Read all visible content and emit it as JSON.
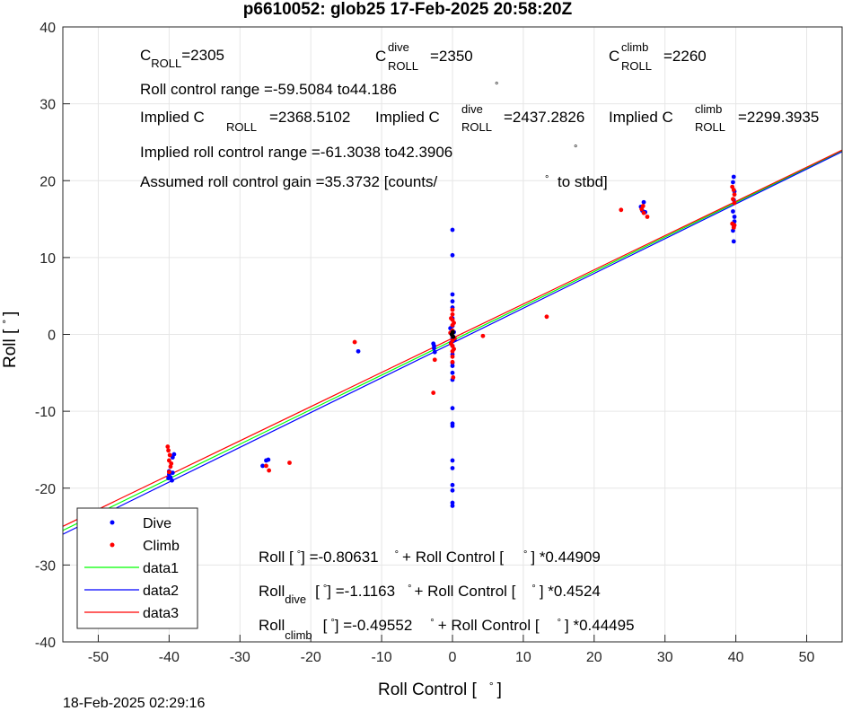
{
  "chart_data": {
    "type": "scatter",
    "title": "p6610052: glob25 17-Feb-2025 20:58:20Z",
    "xlabel": "Roll Control [",
    "ylabel": "Roll [",
    "xlim": [
      -55,
      55
    ],
    "ylim": [
      -40,
      40
    ],
    "grid": true,
    "xticks": [
      "-50",
      "-40",
      "-30",
      "-20",
      "-10",
      "0",
      "10",
      "20",
      "30",
      "40",
      "50"
    ],
    "yticks": [
      "-40",
      "-30",
      "-20",
      "-10",
      "0",
      "10",
      "20",
      "30",
      "40"
    ],
    "legend_position": "bottom-left",
    "legend": [
      "Dive",
      "Climb",
      "data1",
      "data2",
      "data3"
    ],
    "series": [
      {
        "name": "Dive",
        "color": "#0000ff",
        "marker": "dot",
        "points": [
          [
            -40.0,
            -18.2
          ],
          [
            -40.0,
            -17.8
          ],
          [
            -39.8,
            -18.6
          ],
          [
            -39.6,
            -19.0
          ],
          [
            -39.5,
            -16.0
          ],
          [
            -39.3,
            -15.6
          ],
          [
            -39.5,
            -18.0
          ],
          [
            -40.1,
            -18.7
          ],
          [
            -26.3,
            -16.4
          ],
          [
            -26.0,
            -16.3
          ],
          [
            -26.8,
            -17.1
          ],
          [
            -13.3,
            -2.2
          ],
          [
            -2.7,
            -1.2
          ],
          [
            -2.6,
            -1.8
          ],
          [
            -2.5,
            -2.3
          ],
          [
            -2.6,
            -1.5
          ],
          [
            0.0,
            13.6
          ],
          [
            0.0,
            10.3
          ],
          [
            0.0,
            5.2
          ],
          [
            0.0,
            4.3
          ],
          [
            0.0,
            3.5
          ],
          [
            0.0,
            2.1
          ],
          [
            0.0,
            1.1
          ],
          [
            0.0,
            -0.4
          ],
          [
            0.0,
            -1.5
          ],
          [
            0.0,
            -2.6
          ],
          [
            0.0,
            -3.7
          ],
          [
            0.0,
            -4.1
          ],
          [
            0.0,
            -5.0
          ],
          [
            0.0,
            -5.9
          ],
          [
            0.0,
            -9.6
          ],
          [
            0.0,
            -11.6
          ],
          [
            0.0,
            -11.9
          ],
          [
            0.0,
            -16.4
          ],
          [
            0.0,
            -17.4
          ],
          [
            0.0,
            -19.6
          ],
          [
            0.0,
            -20.3
          ],
          [
            0.0,
            -21.9
          ],
          [
            0.0,
            -22.3
          ],
          [
            -0.3,
            0.8
          ],
          [
            -0.2,
            -1.1
          ],
          [
            0.2,
            0.3
          ],
          [
            0.3,
            -0.7
          ],
          [
            27.0,
            17.2
          ],
          [
            26.8,
            16.1
          ],
          [
            27.2,
            15.9
          ],
          [
            26.6,
            16.6
          ],
          [
            39.7,
            20.5
          ],
          [
            39.6,
            19.8
          ],
          [
            39.8,
            18.6
          ],
          [
            39.7,
            17.5
          ],
          [
            39.6,
            16.0
          ],
          [
            39.8,
            15.3
          ],
          [
            39.7,
            14.2
          ],
          [
            39.6,
            13.5
          ],
          [
            39.7,
            12.1
          ],
          [
            39.8,
            14.7
          ]
        ]
      },
      {
        "name": "Climb",
        "color": "#ff0000",
        "marker": "dot",
        "points": [
          [
            -40.2,
            -14.6
          ],
          [
            -40.1,
            -15.1
          ],
          [
            -39.9,
            -15.7
          ],
          [
            -40.0,
            -16.4
          ],
          [
            -39.8,
            -17.2
          ],
          [
            -39.7,
            -16.8
          ],
          [
            -40.0,
            -17.9
          ],
          [
            -26.3,
            -17.1
          ],
          [
            -25.9,
            -17.7
          ],
          [
            -23.0,
            -16.7
          ],
          [
            -13.8,
            -1.0
          ],
          [
            -2.7,
            -7.6
          ],
          [
            -2.5,
            -3.3
          ],
          [
            0.0,
            3.2
          ],
          [
            0.0,
            2.6
          ],
          [
            0.0,
            1.9
          ],
          [
            0.0,
            1.2
          ],
          [
            0.0,
            0.5
          ],
          [
            0.0,
            -0.2
          ],
          [
            0.0,
            -0.8
          ],
          [
            0.0,
            -1.5
          ],
          [
            0.0,
            -2.2
          ],
          [
            0.0,
            -2.9
          ],
          [
            0.0,
            -3.6
          ],
          [
            -0.2,
            2.1
          ],
          [
            0.2,
            1.5
          ],
          [
            -0.3,
            0.2
          ],
          [
            0.3,
            -0.5
          ],
          [
            -0.2,
            -1.2
          ],
          [
            0.2,
            -1.9
          ],
          [
            0.1,
            -5.6
          ],
          [
            4.3,
            -0.2
          ],
          [
            13.3,
            2.3
          ],
          [
            23.8,
            16.2
          ],
          [
            26.7,
            16.3
          ],
          [
            27.0,
            15.8
          ],
          [
            27.5,
            15.3
          ],
          [
            26.9,
            16.7
          ],
          [
            39.5,
            19.2
          ],
          [
            39.7,
            18.8
          ],
          [
            39.8,
            18.2
          ],
          [
            39.6,
            17.6
          ],
          [
            39.8,
            17.1
          ],
          [
            39.5,
            14.4
          ],
          [
            39.7,
            13.9
          ],
          [
            39.8,
            14.2
          ]
        ]
      },
      {
        "name": "data1",
        "color": "#00ff00",
        "type": "line",
        "intercept": -0.80631,
        "slope": 0.44909
      },
      {
        "name": "data2",
        "color": "#0000ff",
        "type": "line",
        "intercept": -1.1163,
        "slope": 0.4524
      },
      {
        "name": "data3",
        "color": "#ff0000",
        "type": "line",
        "intercept": -0.49552,
        "slope": 0.44495
      }
    ],
    "dark_marker": {
      "color": "#000000",
      "points": [
        [
          -0.1,
          0.0
        ],
        [
          0.05,
          0.3
        ],
        [
          0.1,
          -0.3
        ]
      ]
    }
  },
  "annotations": {
    "c_roll_main": "C",
    "c_roll_sub": "ROLL",
    "c_roll_value": "=2305",
    "c_dive_main": "C",
    "c_dive_sup": "dive",
    "c_dive_sub": "ROLL",
    "c_dive_value": "=2350",
    "c_climb_main": "C",
    "c_climb_sup": "climb",
    "c_climb_sub": "ROLL",
    "c_climb_value": "=2260",
    "roll_range": "Roll control range =-59.5084 to44.186",
    "implied_roll_label": "Implied C",
    "implied_roll_sub": "ROLL",
    "implied_roll_value": "=2368.5102",
    "implied_dive_label": "Implied C",
    "implied_dive_sup": "dive",
    "implied_dive_sub": "ROLL",
    "implied_dive_value": "=2437.2826",
    "implied_climb_label": "Implied C",
    "implied_climb_sup": "climb",
    "implied_climb_sub": "ROLL",
    "implied_climb_value": "=2299.3935",
    "implied_range": "Implied roll control range =-61.3038 to42.3906",
    "gain_text": "Assumed roll control gain =35.3732 [counts/",
    "gain_suffix": "to stbd]",
    "degree_symbol": "°",
    "fit_all_a": "Roll [",
    "fit_all_b": "] =-0.80631",
    "fit_all_c": "+ Roll Control [",
    "fit_all_d": "] *0.44909",
    "fit_dive_a": "Roll",
    "fit_dive_sub": "dive",
    "fit_dive_b": "[",
    "fit_dive_c": "] =-1.1163",
    "fit_dive_d": "+ Roll Control [",
    "fit_dive_e": "] *0.4524",
    "fit_climb_a": "Roll",
    "fit_climb_sub": "climb",
    "fit_climb_b": "[",
    "fit_climb_c": "] =-0.49552",
    "fit_climb_d": "+ Roll Control [",
    "fit_climb_e": "] *0.44495",
    "xlabel_suffix": "]",
    "ylabel_suffix": "]"
  },
  "footer": {
    "timestamp": "18-Feb-2025 02:29:16"
  }
}
